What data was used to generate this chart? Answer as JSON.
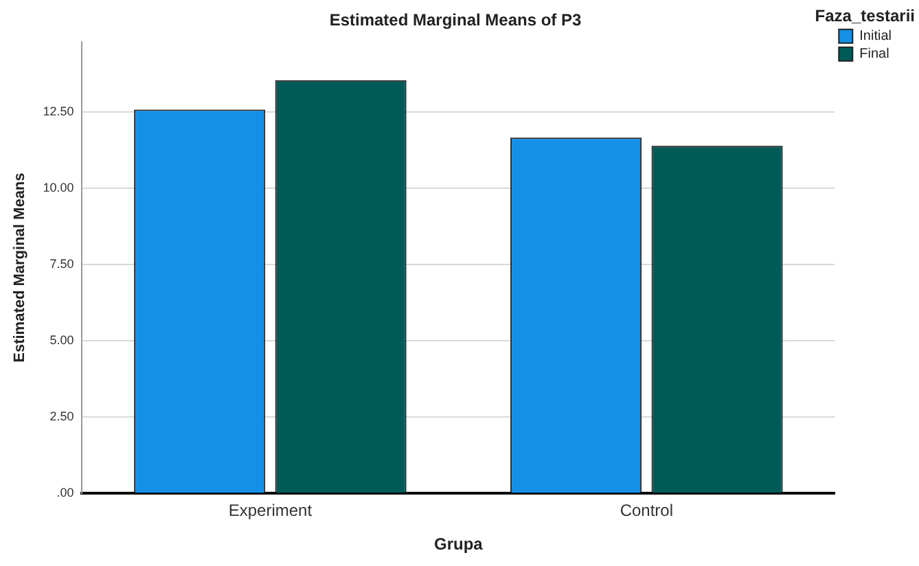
{
  "chart_data": {
    "type": "bar",
    "title": "Estimated Marginal Means of P3",
    "xlabel": "Grupa",
    "ylabel": "Estimated Marginal Means",
    "legend_title": "Faza_testarii",
    "categories": [
      "Experiment",
      "Control"
    ],
    "series": [
      {
        "name": "Initial",
        "color": "#1490e6",
        "values": [
          12.58,
          11.66
        ]
      },
      {
        "name": "Final",
        "color": "#005a58",
        "values": [
          13.54,
          11.39
        ]
      }
    ],
    "ylim": [
      0,
      14.8
    ],
    "yticks": [
      {
        "value": 0,
        "label": ".00"
      },
      {
        "value": 2.5,
        "label": "2.50"
      },
      {
        "value": 5,
        "label": "5.00"
      },
      {
        "value": 7.5,
        "label": "7.50"
      },
      {
        "value": 10,
        "label": "10.00"
      },
      {
        "value": 12.5,
        "label": "12.50"
      }
    ],
    "grid": "y",
    "legend": "top right"
  }
}
